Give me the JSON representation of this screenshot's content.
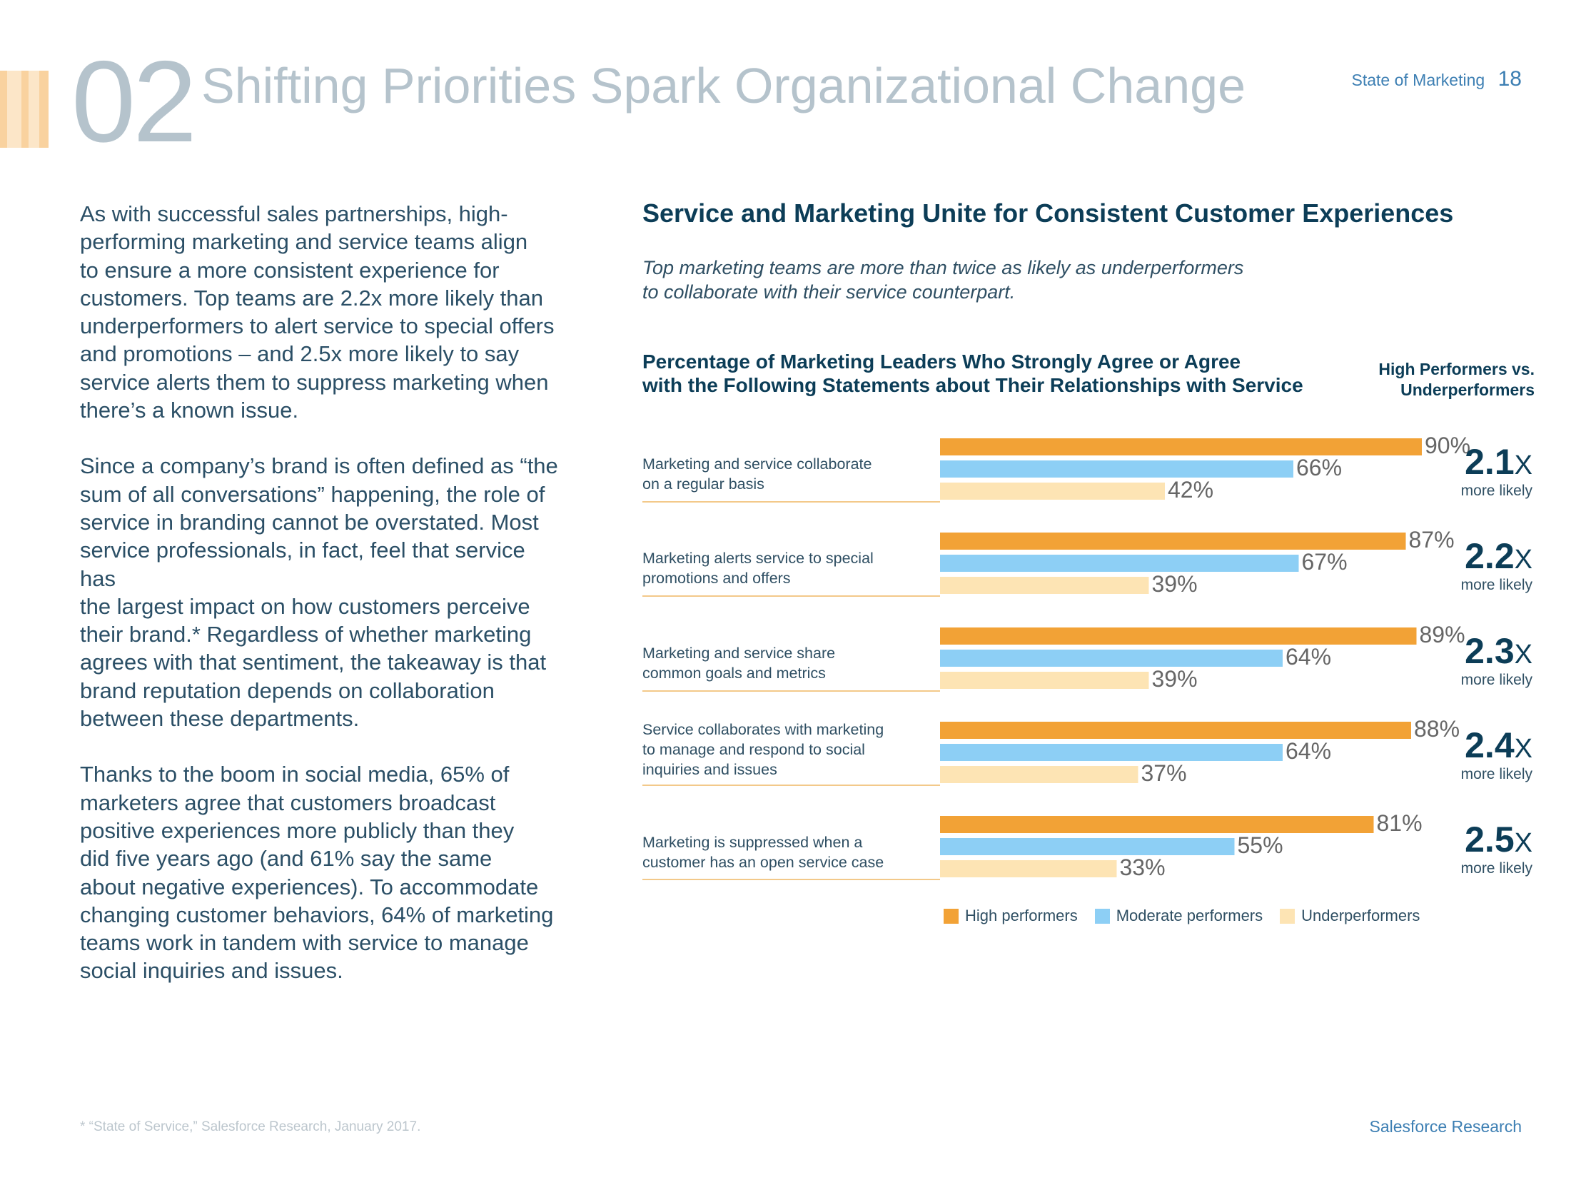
{
  "header": {
    "section_number": "02",
    "title": "Shifting Priorities Spark Organizational Change",
    "report_name": "State of Marketing",
    "page_number": "18"
  },
  "body": {
    "paragraphs": [
      [
        "As with successful sales partnerships, high-",
        "performing marketing and service teams align",
        "to ensure a more consistent experience for",
        "customers. Top teams are 2.2x more likely than",
        "underperformers to alert service to special offers",
        "and promotions – and 2.5x more likely to say",
        "service alerts them to suppress marketing when",
        "there’s a known issue."
      ],
      [
        "Since a company’s brand is often defined as “the",
        "sum of all conversations” happening, the role of",
        "service in branding cannot be overstated. Most",
        "service professionals, in fact, feel that service has",
        "the largest impact on how customers perceive",
        "their brand.* Regardless of whether marketing",
        "agrees with that sentiment, the takeaway is that",
        "brand reputation depends on collaboration",
        "between these departments."
      ],
      [
        "Thanks to the boom in social media, 65% of",
        "marketers agree that customers broadcast",
        "positive experiences more publicly than they",
        "did five years ago (and 61% say the same",
        "about negative experiences). To accommodate",
        "changing customer behaviors, 64% of marketing",
        "teams work in tandem with service to manage",
        "social inquiries and issues."
      ]
    ]
  },
  "chart": {
    "title": "Service and Marketing Unite for Consistent Customer Experiences",
    "subtitle_lines": [
      "Top marketing teams are more than twice as likely as underperformers",
      "to collaborate with their service counterpart."
    ],
    "heading_lines": [
      "Percentage of Marketing Leaders Who Strongly Agree or Agree",
      "with the Following Statements about Their Relationships with Service"
    ],
    "ratio_heading_lines": [
      "High Performers vs.",
      "Underperformers"
    ],
    "ratio_caption": "more likely"
  },
  "chart_data": {
    "type": "bar",
    "orientation": "horizontal",
    "title": "Percentage of Marketing Leaders Who Strongly Agree or Agree with the Following Statements about Their Relationships with Service",
    "categories": [
      [
        "Marketing and service collaborate",
        "on a regular basis"
      ],
      [
        "Marketing alerts service to special",
        "promotions and offers"
      ],
      [
        "Marketing and service share",
        "common goals and metrics"
      ],
      [
        "Service collaborates with marketing",
        "to manage and respond to social",
        "inquiries and issues"
      ],
      [
        "Marketing is suppressed when a",
        "customer has an open service case"
      ]
    ],
    "series": [
      {
        "name": "High performers",
        "color": "#f2a236",
        "values": [
          90,
          87,
          89,
          88,
          81
        ]
      },
      {
        "name": "Moderate performers",
        "color": "#8dcff5",
        "values": [
          66,
          67,
          64,
          64,
          55
        ]
      },
      {
        "name": "Underperformers",
        "color": "#fde4b4",
        "values": [
          42,
          39,
          39,
          37,
          33
        ]
      }
    ],
    "value_suffix": "%",
    "ratios": [
      "2.1",
      "2.2",
      "2.3",
      "2.4",
      "2.5"
    ],
    "ratio_suffix": "X",
    "xlim": [
      0,
      100
    ],
    "legend": "bottom"
  },
  "footer": {
    "footnote": "* “State of Service,” Salesforce Research, January 2017.",
    "brand": "Salesforce Research"
  },
  "colors": {
    "deco_stripes": [
      "#f9d29f",
      "#fce6c8",
      "#f9d29f",
      "#fce6c8",
      "#f9d29f"
    ],
    "separator": "#f3c98a",
    "label_text": "#666666"
  }
}
